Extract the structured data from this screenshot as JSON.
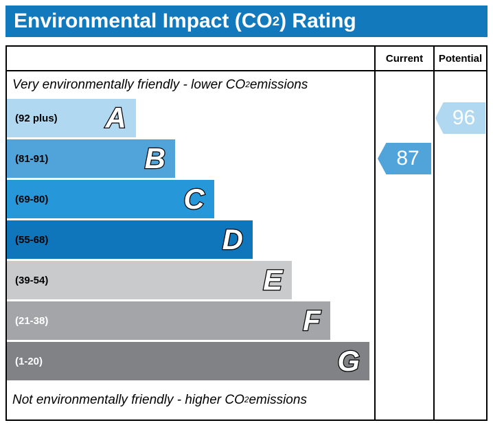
{
  "title": {
    "pre": "Environmental Impact (CO",
    "sub": "2",
    "post": ") Rating"
  },
  "colors": {
    "title_bg": "#1379bd"
  },
  "header": {
    "current": "Current",
    "potential": "Potential"
  },
  "captions": {
    "top": {
      "pre": "Very environmentally friendly - lower CO",
      "sub": "2",
      "post": " emissions"
    },
    "bottom": {
      "pre": "Not environmentally friendly - higher CO",
      "sub": "2",
      "post": " emissions"
    }
  },
  "chart_data": {
    "type": "bar",
    "subtype": "epc-environmental-impact-rating",
    "title": "Environmental Impact (CO2) Rating",
    "columns": [
      "Current",
      "Potential"
    ],
    "bands": [
      {
        "letter": "A",
        "range_label": "(92 plus)",
        "color": "#b0d9f1",
        "width_pct": 35.1,
        "label_color": "#000000"
      },
      {
        "letter": "B",
        "range_label": "(81-91)",
        "color": "#51a4da",
        "width_pct": 45.8,
        "label_color": "#000000"
      },
      {
        "letter": "C",
        "range_label": "(69-80)",
        "color": "#2697d8",
        "width_pct": 56.4,
        "label_color": "#000000"
      },
      {
        "letter": "D",
        "range_label": "(55-68)",
        "color": "#1076bc",
        "width_pct": 66.9,
        "label_color": "#000000"
      },
      {
        "letter": "E",
        "range_label": "(39-54)",
        "color": "#c9cacc",
        "width_pct": 77.6,
        "label_color": "#000000"
      },
      {
        "letter": "F",
        "range_label": "(21-38)",
        "color": "#a4a5a8",
        "width_pct": 88.0,
        "label_color": "#ffffff"
      },
      {
        "letter": "G",
        "range_label": "(1-20)",
        "color": "#808285",
        "width_pct": 98.7,
        "label_color": "#ffffff"
      }
    ],
    "current": {
      "value": 87,
      "band": "B",
      "color": "#51a4da"
    },
    "potential": {
      "value": 96,
      "band": "A",
      "color": "#b0d9f1"
    }
  }
}
